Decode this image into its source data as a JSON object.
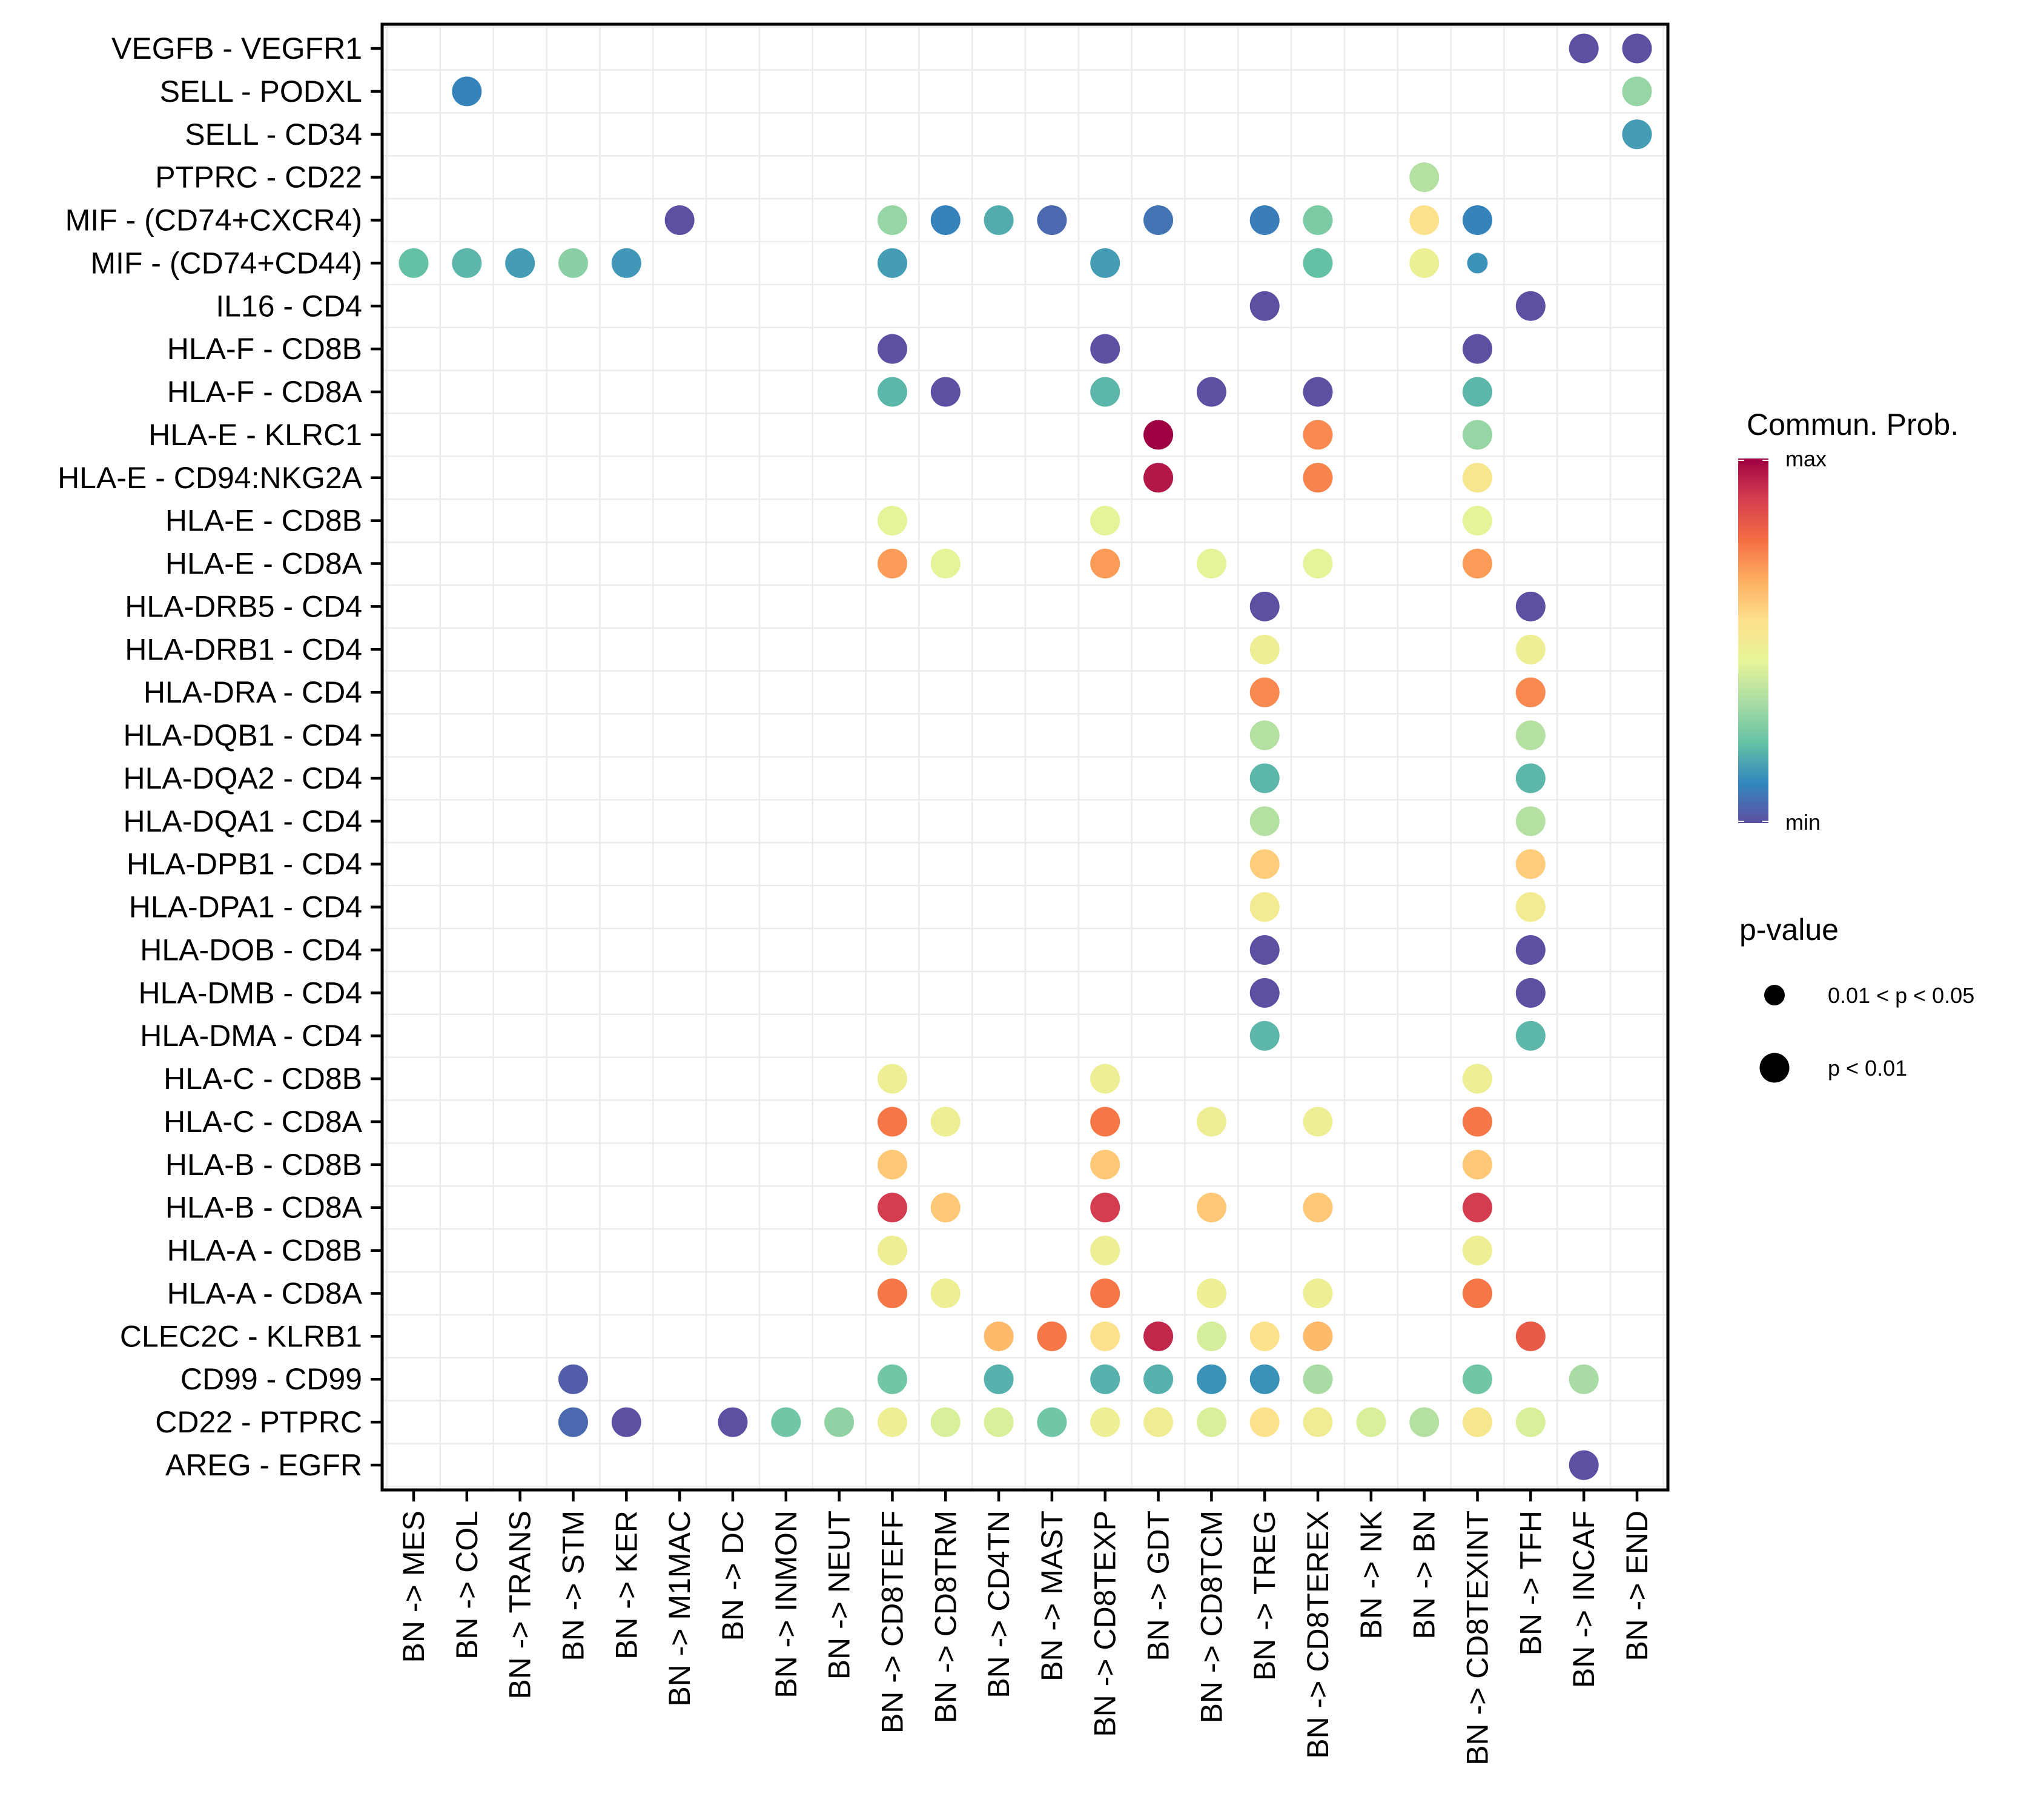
{
  "chart_data": {
    "type": "scatter",
    "subtype": "dot-plot",
    "title": "",
    "xlabel": "",
    "ylabel": "",
    "grid": true,
    "x_categories": [
      "BN -> MES",
      "BN -> COL",
      "BN -> TRANS",
      "BN -> STM",
      "BN -> KER",
      "BN -> M1MAC",
      "BN -> DC",
      "BN -> INMON",
      "BN -> NEUT",
      "BN -> CD8TEFF",
      "BN -> CD8TRM",
      "BN -> CD4TN",
      "BN -> MAST",
      "BN -> CD8TEXP",
      "BN -> GDT",
      "BN -> CD8TCM",
      "BN -> TREG",
      "BN -> CD8TEREX",
      "BN -> NK",
      "BN -> BN",
      "BN -> CD8TEXINT",
      "BN -> TFH",
      "BN -> INCAF",
      "BN -> END"
    ],
    "y_categories": [
      "VEGFB - VEGFR1",
      "SELL - PODXL",
      "SELL - CD34",
      "PTPRC - CD22",
      "MIF - (CD74+CXCR4)",
      "MIF - (CD74+CD44)",
      "IL16 - CD4",
      "HLA-F - CD8B",
      "HLA-F - CD8A",
      "HLA-E - KLRC1",
      "HLA-E - CD94:NKG2A",
      "HLA-E - CD8B",
      "HLA-E - CD8A",
      "HLA-DRB5 - CD4",
      "HLA-DRB1 - CD4",
      "HLA-DRA - CD4",
      "HLA-DQB1 - CD4",
      "HLA-DQA2 - CD4",
      "HLA-DQA1 - CD4",
      "HLA-DPB1 - CD4",
      "HLA-DPA1 - CD4",
      "HLA-DOB - CD4",
      "HLA-DMB - CD4",
      "HLA-DMA - CD4",
      "HLA-C - CD8B",
      "HLA-C - CD8A",
      "HLA-B - CD8B",
      "HLA-B - CD8A",
      "HLA-A - CD8B",
      "HLA-A - CD8A",
      "CLEC2C - KLRB1",
      "CD99 - CD99",
      "CD22 - PTPRC",
      "AREG - EGFR"
    ],
    "color_legend": {
      "title": "Commun. Prob.",
      "max_label": "max",
      "min_label": "min",
      "palette": [
        "#5e4fa2",
        "#3288bd",
        "#66c2a5",
        "#abdda4",
        "#e6f598",
        "#fee08b",
        "#fdae61",
        "#f46d43",
        "#d53e4f",
        "#9e0142"
      ]
    },
    "size_legend": {
      "title": "p-value",
      "items": [
        {
          "label": "0.01 < p < 0.05",
          "size": "small"
        },
        {
          "label": "p < 0.01",
          "size": "large"
        }
      ]
    },
    "value_scale": "normalized 0 (min) to 1 (max), estimated from color",
    "points": [
      {
        "y": "VEGFB - VEGFR1",
        "x": "BN -> INCAF",
        "prob": 0.0,
        "p": "<0.01"
      },
      {
        "y": "VEGFB - VEGFR1",
        "x": "BN -> END",
        "prob": 0.0,
        "p": "<0.01"
      },
      {
        "y": "SELL - PODXL",
        "x": "BN -> COL",
        "prob": 0.1,
        "p": "<0.01"
      },
      {
        "y": "SELL - PODXL",
        "x": "BN -> END",
        "prob": 0.3,
        "p": "<0.01"
      },
      {
        "y": "SELL - CD34",
        "x": "BN -> END",
        "prob": 0.15,
        "p": "<0.01"
      },
      {
        "y": "PTPRC - CD22",
        "x": "BN -> BN",
        "prob": 0.35,
        "p": "<0.01"
      },
      {
        "y": "MIF - (CD74+CXCR4)",
        "x": "BN -> M1MAC",
        "prob": 0.0,
        "p": "<0.01"
      },
      {
        "y": "MIF - (CD74+CXCR4)",
        "x": "BN -> CD8TEFF",
        "prob": 0.3,
        "p": "<0.01"
      },
      {
        "y": "MIF - (CD74+CXCR4)",
        "x": "BN -> CD8TRM",
        "prob": 0.1,
        "p": "<0.01"
      },
      {
        "y": "MIF - (CD74+CXCR4)",
        "x": "BN -> CD4TN",
        "prob": 0.18,
        "p": "<0.01"
      },
      {
        "y": "MIF - (CD74+CXCR4)",
        "x": "BN -> MAST",
        "prob": 0.05,
        "p": "<0.01"
      },
      {
        "y": "MIF - (CD74+CXCR4)",
        "x": "BN -> GDT",
        "prob": 0.07,
        "p": "<0.01"
      },
      {
        "y": "MIF - (CD74+CXCR4)",
        "x": "BN -> TREG",
        "prob": 0.09,
        "p": "<0.01"
      },
      {
        "y": "MIF - (CD74+CXCR4)",
        "x": "BN -> CD8TEREX",
        "prob": 0.26,
        "p": "<0.01"
      },
      {
        "y": "MIF - (CD74+CXCR4)",
        "x": "BN -> BN",
        "prob": 0.55,
        "p": "<0.01"
      },
      {
        "y": "MIF - (CD74+CXCR4)",
        "x": "BN -> CD8TEXINT",
        "prob": 0.1,
        "p": "<0.01"
      },
      {
        "y": "MIF - (CD74+CD44)",
        "x": "BN -> MES",
        "prob": 0.22,
        "p": "<0.01"
      },
      {
        "y": "MIF - (CD74+CD44)",
        "x": "BN -> COL",
        "prob": 0.2,
        "p": "<0.01"
      },
      {
        "y": "MIF - (CD74+CD44)",
        "x": "BN -> TRANS",
        "prob": 0.15,
        "p": "<0.01"
      },
      {
        "y": "MIF - (CD74+CD44)",
        "x": "BN -> STM",
        "prob": 0.28,
        "p": "<0.01"
      },
      {
        "y": "MIF - (CD74+CD44)",
        "x": "BN -> KER",
        "prob": 0.14,
        "p": "<0.01"
      },
      {
        "y": "MIF - (CD74+CD44)",
        "x": "BN -> CD8TEFF",
        "prob": 0.15,
        "p": "<0.01"
      },
      {
        "y": "MIF - (CD74+CD44)",
        "x": "BN -> CD8TEXP",
        "prob": 0.15,
        "p": "<0.01"
      },
      {
        "y": "MIF - (CD74+CD44)",
        "x": "BN -> CD8TEREX",
        "prob": 0.22,
        "p": "<0.01"
      },
      {
        "y": "MIF - (CD74+CD44)",
        "x": "BN -> BN",
        "prob": 0.47,
        "p": "<0.01"
      },
      {
        "y": "MIF - (CD74+CD44)",
        "x": "BN -> CD8TEXINT",
        "prob": 0.13,
        "p": "0.01-0.05"
      },
      {
        "y": "IL16 - CD4",
        "x": "BN -> TREG",
        "prob": 0.0,
        "p": "<0.01"
      },
      {
        "y": "IL16 - CD4",
        "x": "BN -> TFH",
        "prob": 0.0,
        "p": "<0.01"
      },
      {
        "y": "HLA-F - CD8B",
        "x": "BN -> CD8TEFF",
        "prob": 0.0,
        "p": "<0.01"
      },
      {
        "y": "HLA-F - CD8B",
        "x": "BN -> CD8TEXP",
        "prob": 0.0,
        "p": "<0.01"
      },
      {
        "y": "HLA-F - CD8B",
        "x": "BN -> CD8TEXINT",
        "prob": 0.0,
        "p": "<0.01"
      },
      {
        "y": "HLA-F - CD8A",
        "x": "BN -> CD8TEFF",
        "prob": 0.2,
        "p": "<0.01"
      },
      {
        "y": "HLA-F - CD8A",
        "x": "BN -> CD8TRM",
        "prob": 0.0,
        "p": "<0.01"
      },
      {
        "y": "HLA-F - CD8A",
        "x": "BN -> CD8TEXP",
        "prob": 0.2,
        "p": "<0.01"
      },
      {
        "y": "HLA-F - CD8A",
        "x": "BN -> CD8TCM",
        "prob": 0.0,
        "p": "<0.01"
      },
      {
        "y": "HLA-F - CD8A",
        "x": "BN -> CD8TEREX",
        "prob": 0.0,
        "p": "<0.01"
      },
      {
        "y": "HLA-F - CD8A",
        "x": "BN -> CD8TEXINT",
        "prob": 0.2,
        "p": "<0.01"
      },
      {
        "y": "HLA-E - KLRC1",
        "x": "BN -> GDT",
        "prob": 1.0,
        "p": "<0.01"
      },
      {
        "y": "HLA-E - KLRC1",
        "x": "BN -> CD8TEREX",
        "prob": 0.73,
        "p": "<0.01"
      },
      {
        "y": "HLA-E - KLRC1",
        "x": "BN -> CD8TEXINT",
        "prob": 0.3,
        "p": "<0.01"
      },
      {
        "y": "HLA-E - CD94:NKG2A",
        "x": "BN -> GDT",
        "prob": 0.96,
        "p": "<0.01"
      },
      {
        "y": "HLA-E - CD94:NKG2A",
        "x": "BN -> CD8TEREX",
        "prob": 0.74,
        "p": "<0.01"
      },
      {
        "y": "HLA-E - CD94:NKG2A",
        "x": "BN -> CD8TEXINT",
        "prob": 0.52,
        "p": "<0.01"
      },
      {
        "y": "HLA-E - CD8B",
        "x": "BN -> CD8TEFF",
        "prob": 0.44,
        "p": "<0.01"
      },
      {
        "y": "HLA-E - CD8B",
        "x": "BN -> CD8TEXP",
        "prob": 0.44,
        "p": "<0.01"
      },
      {
        "y": "HLA-E - CD8B",
        "x": "BN -> CD8TEXINT",
        "prob": 0.44,
        "p": "<0.01"
      },
      {
        "y": "HLA-E - CD8A",
        "x": "BN -> CD8TEFF",
        "prob": 0.7,
        "p": "<0.01"
      },
      {
        "y": "HLA-E - CD8A",
        "x": "BN -> CD8TRM",
        "prob": 0.44,
        "p": "<0.01"
      },
      {
        "y": "HLA-E - CD8A",
        "x": "BN -> CD8TEXP",
        "prob": 0.7,
        "p": "<0.01"
      },
      {
        "y": "HLA-E - CD8A",
        "x": "BN -> CD8TCM",
        "prob": 0.44,
        "p": "<0.01"
      },
      {
        "y": "HLA-E - CD8A",
        "x": "BN -> CD8TEREX",
        "prob": 0.44,
        "p": "<0.01"
      },
      {
        "y": "HLA-E - CD8A",
        "x": "BN -> CD8TEXINT",
        "prob": 0.7,
        "p": "<0.01"
      },
      {
        "y": "HLA-DRB5 - CD4",
        "x": "BN -> TREG",
        "prob": 0.0,
        "p": "<0.01"
      },
      {
        "y": "HLA-DRB5 - CD4",
        "x": "BN -> TFH",
        "prob": 0.0,
        "p": "<0.01"
      },
      {
        "y": "HLA-DRB1 - CD4",
        "x": "BN -> TREG",
        "prob": 0.48,
        "p": "<0.01"
      },
      {
        "y": "HLA-DRB1 - CD4",
        "x": "BN -> TFH",
        "prob": 0.48,
        "p": "<0.01"
      },
      {
        "y": "HLA-DRA - CD4",
        "x": "BN -> TREG",
        "prob": 0.73,
        "p": "<0.01"
      },
      {
        "y": "HLA-DRA - CD4",
        "x": "BN -> TFH",
        "prob": 0.73,
        "p": "<0.01"
      },
      {
        "y": "HLA-DQB1 - CD4",
        "x": "BN -> TREG",
        "prob": 0.35,
        "p": "<0.01"
      },
      {
        "y": "HLA-DQB1 - CD4",
        "x": "BN -> TFH",
        "prob": 0.35,
        "p": "<0.01"
      },
      {
        "y": "HLA-DQA2 - CD4",
        "x": "BN -> TREG",
        "prob": 0.2,
        "p": "<0.01"
      },
      {
        "y": "HLA-DQA2 - CD4",
        "x": "BN -> TFH",
        "prob": 0.2,
        "p": "<0.01"
      },
      {
        "y": "HLA-DQA1 - CD4",
        "x": "BN -> TREG",
        "prob": 0.35,
        "p": "<0.01"
      },
      {
        "y": "HLA-DQA1 - CD4",
        "x": "BN -> TFH",
        "prob": 0.35,
        "p": "<0.01"
      },
      {
        "y": "HLA-DPB1 - CD4",
        "x": "BN -> TREG",
        "prob": 0.6,
        "p": "<0.01"
      },
      {
        "y": "HLA-DPB1 - CD4",
        "x": "BN -> TFH",
        "prob": 0.6,
        "p": "<0.01"
      },
      {
        "y": "HLA-DPA1 - CD4",
        "x": "BN -> TREG",
        "prob": 0.5,
        "p": "<0.01"
      },
      {
        "y": "HLA-DPA1 - CD4",
        "x": "BN -> TFH",
        "prob": 0.5,
        "p": "<0.01"
      },
      {
        "y": "HLA-DOB - CD4",
        "x": "BN -> TREG",
        "prob": 0.0,
        "p": "<0.01"
      },
      {
        "y": "HLA-DOB - CD4",
        "x": "BN -> TFH",
        "prob": 0.0,
        "p": "<0.01"
      },
      {
        "y": "HLA-DMB - CD4",
        "x": "BN -> TREG",
        "prob": 0.0,
        "p": "<0.01"
      },
      {
        "y": "HLA-DMB - CD4",
        "x": "BN -> TFH",
        "prob": 0.0,
        "p": "<0.01"
      },
      {
        "y": "HLA-DMA - CD4",
        "x": "BN -> TREG",
        "prob": 0.2,
        "p": "<0.01"
      },
      {
        "y": "HLA-DMA - CD4",
        "x": "BN -> TFH",
        "prob": 0.2,
        "p": "<0.01"
      },
      {
        "y": "HLA-C - CD8B",
        "x": "BN -> CD8TEFF",
        "prob": 0.48,
        "p": "<0.01"
      },
      {
        "y": "HLA-C - CD8B",
        "x": "BN -> CD8TEXP",
        "prob": 0.48,
        "p": "<0.01"
      },
      {
        "y": "HLA-C - CD8B",
        "x": "BN -> CD8TEXINT",
        "prob": 0.48,
        "p": "<0.01"
      },
      {
        "y": "HLA-C - CD8A",
        "x": "BN -> CD8TEFF",
        "prob": 0.76,
        "p": "<0.01"
      },
      {
        "y": "HLA-C - CD8A",
        "x": "BN -> CD8TRM",
        "prob": 0.48,
        "p": "<0.01"
      },
      {
        "y": "HLA-C - CD8A",
        "x": "BN -> CD8TEXP",
        "prob": 0.76,
        "p": "<0.01"
      },
      {
        "y": "HLA-C - CD8A",
        "x": "BN -> CD8TCM",
        "prob": 0.48,
        "p": "<0.01"
      },
      {
        "y": "HLA-C - CD8A",
        "x": "BN -> CD8TEREX",
        "prob": 0.48,
        "p": "<0.01"
      },
      {
        "y": "HLA-C - CD8A",
        "x": "BN -> CD8TEXINT",
        "prob": 0.76,
        "p": "<0.01"
      },
      {
        "y": "HLA-B - CD8B",
        "x": "BN -> CD8TEFF",
        "prob": 0.61,
        "p": "<0.01"
      },
      {
        "y": "HLA-B - CD8B",
        "x": "BN -> CD8TEXP",
        "prob": 0.61,
        "p": "<0.01"
      },
      {
        "y": "HLA-B - CD8B",
        "x": "BN -> CD8TEXINT",
        "prob": 0.61,
        "p": "<0.01"
      },
      {
        "y": "HLA-B - CD8A",
        "x": "BN -> CD8TEFF",
        "prob": 0.89,
        "p": "<0.01"
      },
      {
        "y": "HLA-B - CD8A",
        "x": "BN -> CD8TRM",
        "prob": 0.61,
        "p": "<0.01"
      },
      {
        "y": "HLA-B - CD8A",
        "x": "BN -> CD8TEXP",
        "prob": 0.89,
        "p": "<0.01"
      },
      {
        "y": "HLA-B - CD8A",
        "x": "BN -> CD8TCM",
        "prob": 0.61,
        "p": "<0.01"
      },
      {
        "y": "HLA-B - CD8A",
        "x": "BN -> CD8TEREX",
        "prob": 0.61,
        "p": "<0.01"
      },
      {
        "y": "HLA-B - CD8A",
        "x": "BN -> CD8TEXINT",
        "prob": 0.89,
        "p": "<0.01"
      },
      {
        "y": "HLA-A - CD8B",
        "x": "BN -> CD8TEFF",
        "prob": 0.48,
        "p": "<0.01"
      },
      {
        "y": "HLA-A - CD8B",
        "x": "BN -> CD8TEXP",
        "prob": 0.48,
        "p": "<0.01"
      },
      {
        "y": "HLA-A - CD8B",
        "x": "BN -> CD8TEXINT",
        "prob": 0.48,
        "p": "<0.01"
      },
      {
        "y": "HLA-A - CD8A",
        "x": "BN -> CD8TEFF",
        "prob": 0.76,
        "p": "<0.01"
      },
      {
        "y": "HLA-A - CD8A",
        "x": "BN -> CD8TRM",
        "prob": 0.48,
        "p": "<0.01"
      },
      {
        "y": "HLA-A - CD8A",
        "x": "BN -> CD8TEXP",
        "prob": 0.76,
        "p": "<0.01"
      },
      {
        "y": "HLA-A - CD8A",
        "x": "BN -> CD8TCM",
        "prob": 0.48,
        "p": "<0.01"
      },
      {
        "y": "HLA-A - CD8A",
        "x": "BN -> CD8TEREX",
        "prob": 0.48,
        "p": "<0.01"
      },
      {
        "y": "HLA-A - CD8A",
        "x": "BN -> CD8TEXINT",
        "prob": 0.76,
        "p": "<0.01"
      },
      {
        "y": "CLEC2C - KLRB1",
        "x": "BN -> CD4TN",
        "prob": 0.64,
        "p": "<0.01"
      },
      {
        "y": "CLEC2C - KLRB1",
        "x": "BN -> MAST",
        "prob": 0.76,
        "p": "<0.01"
      },
      {
        "y": "CLEC2C - KLRB1",
        "x": "BN -> CD8TEXP",
        "prob": 0.55,
        "p": "<0.01"
      },
      {
        "y": "CLEC2C - KLRB1",
        "x": "BN -> GDT",
        "prob": 0.93,
        "p": "<0.01"
      },
      {
        "y": "CLEC2C - KLRB1",
        "x": "BN -> CD8TCM",
        "prob": 0.41,
        "p": "<0.01"
      },
      {
        "y": "CLEC2C - KLRB1",
        "x": "BN -> TREG",
        "prob": 0.55,
        "p": "<0.01"
      },
      {
        "y": "CLEC2C - KLRB1",
        "x": "BN -> CD8TEREX",
        "prob": 0.64,
        "p": "<0.01"
      },
      {
        "y": "CLEC2C - KLRB1",
        "x": "BN -> TFH",
        "prob": 0.82,
        "p": "<0.01"
      },
      {
        "y": "CD99 - CD99",
        "x": "BN -> STM",
        "prob": 0.03,
        "p": "<0.01"
      },
      {
        "y": "CD99 - CD99",
        "x": "BN -> CD8TEFF",
        "prob": 0.24,
        "p": "<0.01"
      },
      {
        "y": "CD99 - CD99",
        "x": "BN -> CD4TN",
        "prob": 0.19,
        "p": "<0.01"
      },
      {
        "y": "CD99 - CD99",
        "x": "BN -> CD8TEXP",
        "prob": 0.19,
        "p": "<0.01"
      },
      {
        "y": "CD99 - CD99",
        "x": "BN -> GDT",
        "prob": 0.19,
        "p": "<0.01"
      },
      {
        "y": "CD99 - CD99",
        "x": "BN -> CD8TCM",
        "prob": 0.13,
        "p": "<0.01"
      },
      {
        "y": "CD99 - CD99",
        "x": "BN -> TREG",
        "prob": 0.13,
        "p": "<0.01"
      },
      {
        "y": "CD99 - CD99",
        "x": "BN -> CD8TEREX",
        "prob": 0.33,
        "p": "<0.01"
      },
      {
        "y": "CD99 - CD99",
        "x": "BN -> CD8TEXINT",
        "prob": 0.24,
        "p": "<0.01"
      },
      {
        "y": "CD99 - CD99",
        "x": "BN -> INCAF",
        "prob": 0.33,
        "p": "<0.01"
      },
      {
        "y": "CD22 - PTPRC",
        "x": "BN -> STM",
        "prob": 0.05,
        "p": "<0.01"
      },
      {
        "y": "CD22 - PTPRC",
        "x": "BN -> KER",
        "prob": 0.0,
        "p": "<0.01"
      },
      {
        "y": "CD22 - PTPRC",
        "x": "BN -> DC",
        "prob": 0.0,
        "p": "<0.01"
      },
      {
        "y": "CD22 - PTPRC",
        "x": "BN -> INMON",
        "prob": 0.24,
        "p": "<0.01"
      },
      {
        "y": "CD22 - PTPRC",
        "x": "BN -> NEUT",
        "prob": 0.29,
        "p": "<0.01"
      },
      {
        "y": "CD22 - PTPRC",
        "x": "BN -> CD8TEFF",
        "prob": 0.48,
        "p": "<0.01"
      },
      {
        "y": "CD22 - PTPRC",
        "x": "BN -> CD8TRM",
        "prob": 0.42,
        "p": "<0.01"
      },
      {
        "y": "CD22 - PTPRC",
        "x": "BN -> CD4TN",
        "prob": 0.42,
        "p": "<0.01"
      },
      {
        "y": "CD22 - PTPRC",
        "x": "BN -> MAST",
        "prob": 0.24,
        "p": "<0.01"
      },
      {
        "y": "CD22 - PTPRC",
        "x": "BN -> CD8TEXP",
        "prob": 0.48,
        "p": "<0.01"
      },
      {
        "y": "CD22 - PTPRC",
        "x": "BN -> GDT",
        "prob": 0.49,
        "p": "<0.01"
      },
      {
        "y": "CD22 - PTPRC",
        "x": "BN -> CD8TCM",
        "prob": 0.42,
        "p": "<0.01"
      },
      {
        "y": "CD22 - PTPRC",
        "x": "BN -> TREG",
        "prob": 0.55,
        "p": "<0.01"
      },
      {
        "y": "CD22 - PTPRC",
        "x": "BN -> CD8TEREX",
        "prob": 0.49,
        "p": "<0.01"
      },
      {
        "y": "CD22 - PTPRC",
        "x": "BN -> NK",
        "prob": 0.42,
        "p": "<0.01"
      },
      {
        "y": "CD22 - PTPRC",
        "x": "BN -> BN",
        "prob": 0.35,
        "p": "<0.01"
      },
      {
        "y": "CD22 - PTPRC",
        "x": "BN -> CD8TEXINT",
        "prob": 0.52,
        "p": "<0.01"
      },
      {
        "y": "CD22 - PTPRC",
        "x": "BN -> TFH",
        "prob": 0.42,
        "p": "<0.01"
      },
      {
        "y": "AREG - EGFR",
        "x": "BN -> INCAF",
        "prob": 0.0,
        "p": "<0.01"
      }
    ]
  }
}
